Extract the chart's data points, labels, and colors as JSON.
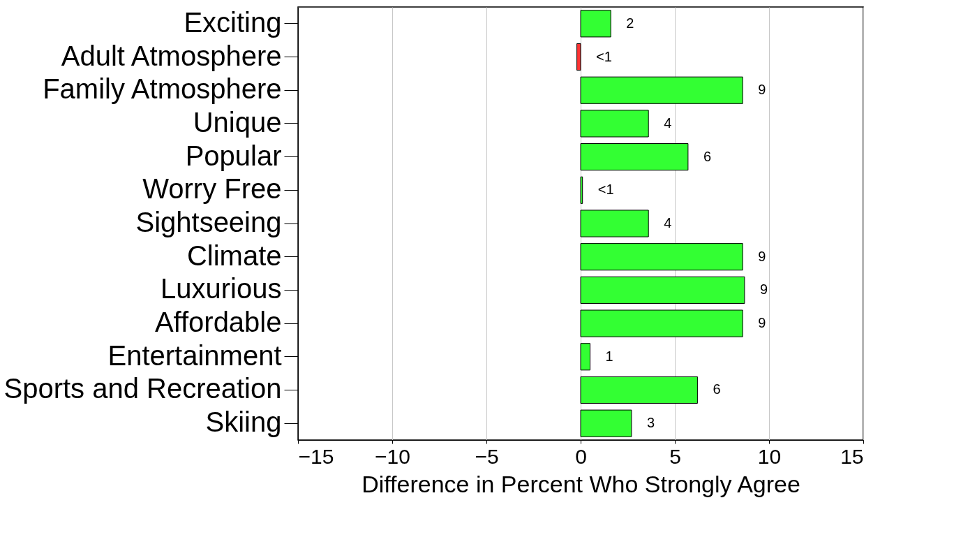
{
  "chart_data": {
    "type": "bar",
    "orientation": "horizontal",
    "xlabel": "Difference in Percent Who Strongly Agree",
    "categories": [
      "Exciting",
      "Adult Atmosphere",
      "Family Atmosphere",
      "Unique",
      "Popular",
      "Worry Free",
      "Sightseeing",
      "Climate",
      "Luxurious",
      "Affordable",
      "Entertainment",
      "Sports and Recreation",
      "Skiing"
    ],
    "values": [
      1.6,
      -0.2,
      8.6,
      3.6,
      5.7,
      0.1,
      3.6,
      8.6,
      8.7,
      8.6,
      0.5,
      6.2,
      2.7
    ],
    "colors": [
      "#33ff33",
      "#ff3333",
      "#33ff33",
      "#33ff33",
      "#33ff33",
      "#33ff33",
      "#33ff33",
      "#33ff33",
      "#33ff33",
      "#33ff33",
      "#33ff33",
      "#33ff33",
      "#33ff33"
    ],
    "value_labels": [
      "2",
      "<1",
      "9",
      "4",
      "6",
      "<1",
      "4",
      "9",
      "9",
      "9",
      "1",
      "6",
      "3"
    ],
    "xlim": [
      -15,
      15
    ],
    "xticks": [
      -15,
      -10,
      -5,
      0,
      5,
      10,
      15
    ],
    "grid": "x"
  }
}
